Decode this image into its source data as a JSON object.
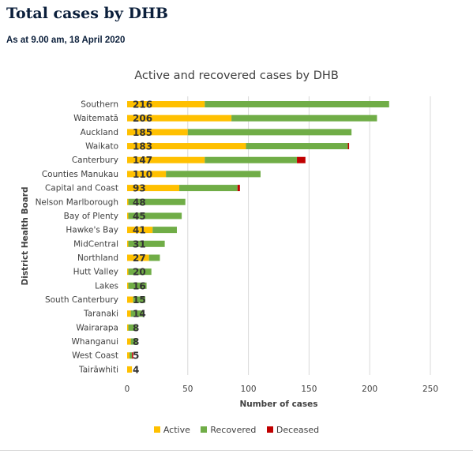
{
  "page": {
    "title": "Total cases by DHB",
    "subtitle": "As at 9.00 am, 18 April 2020"
  },
  "colors": {
    "active": "#ffc000",
    "recovered": "#70ad47",
    "deceased": "#c00000",
    "gridline": "#d9d9d9",
    "text": "#404040"
  },
  "chart_data": {
    "type": "bar",
    "orientation": "horizontal",
    "stacked": true,
    "title": "Active and recovered cases by DHB",
    "xlabel": "Number of cases",
    "ylabel": "District Health Board",
    "xlim": [
      0,
      250
    ],
    "xticks": [
      0,
      50,
      100,
      150,
      200,
      250
    ],
    "grid": true,
    "legend_position": "bottom",
    "categories": [
      "Southern",
      "Waitematā",
      "Auckland",
      "Waikato",
      "Canterbury",
      "Counties Manukau",
      "Capital and Coast",
      "Nelson Marlborough",
      "Bay of Plenty",
      "Hawke's Bay",
      "MidCentral",
      "Northland",
      "Hutt Valley",
      "Lakes",
      "South Canterbury",
      "Taranaki",
      "Wairarapa",
      "Whanganui",
      "West Coast",
      "Tairāwhiti"
    ],
    "totals": [
      216,
      206,
      185,
      183,
      147,
      110,
      93,
      48,
      45,
      41,
      31,
      27,
      20,
      16,
      15,
      14,
      8,
      8,
      5,
      4
    ],
    "series": [
      {
        "name": "Active",
        "color": "#ffc000",
        "values": [
          64,
          86,
          50,
          98,
          64,
          32,
          43,
          1,
          1,
          21,
          1,
          18,
          1,
          1,
          5,
          3,
          1,
          3,
          2,
          4
        ]
      },
      {
        "name": "Recovered",
        "color": "#70ad47",
        "values": [
          152,
          120,
          135,
          84,
          76,
          78,
          48,
          47,
          44,
          20,
          30,
          9,
          19,
          15,
          10,
          11,
          7,
          5,
          2,
          0
        ]
      },
      {
        "name": "Deceased",
        "color": "#c00000",
        "values": [
          0,
          0,
          0,
          1,
          7,
          0,
          2,
          0,
          0,
          0,
          0,
          0,
          0,
          0,
          0,
          0,
          0,
          0,
          1,
          0
        ]
      }
    ]
  }
}
